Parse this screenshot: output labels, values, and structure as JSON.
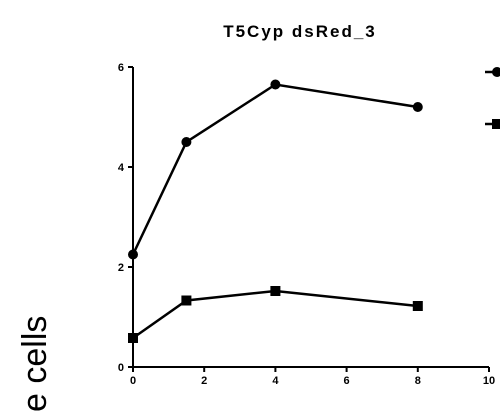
{
  "chart_data": {
    "type": "line",
    "title": "T5Cyp dsRed_3",
    "xlabel": "",
    "ylabel": "e cells",
    "xlim": [
      0,
      10
    ],
    "ylim": [
      0,
      6
    ],
    "x_ticks": [
      0,
      2,
      4,
      6,
      8,
      10
    ],
    "y_ticks": [
      0,
      2,
      4,
      6
    ],
    "x_tick_labels": [
      "0",
      "2",
      "4",
      "6",
      "8",
      "10"
    ],
    "y_tick_labels": [
      "0",
      "2",
      "4",
      "6"
    ],
    "grid": false,
    "legend": {
      "placement": "top-right",
      "entries": [
        {
          "marker": "circle"
        },
        {
          "marker": "square"
        }
      ]
    },
    "series": [
      {
        "marker": "circle",
        "color": "#000000",
        "x": [
          0,
          1.5,
          4,
          8
        ],
        "y": [
          2.25,
          4.5,
          5.65,
          5.2
        ]
      },
      {
        "marker": "square",
        "color": "#000000",
        "x": [
          0,
          1.5,
          4,
          8
        ],
        "y": [
          0.58,
          1.33,
          1.52,
          1.22
        ]
      }
    ]
  }
}
